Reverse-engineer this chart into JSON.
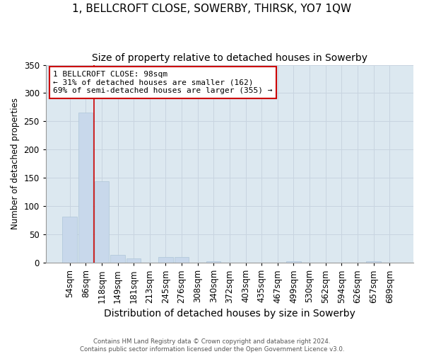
{
  "title": "1, BELLCROFT CLOSE, SOWERBY, THIRSK, YO7 1QW",
  "subtitle": "Size of property relative to detached houses in Sowerby",
  "xlabel": "Distribution of detached houses by size in Sowerby",
  "ylabel": "Number of detached properties",
  "bar_labels": [
    "54sqm",
    "86sqm",
    "118sqm",
    "149sqm",
    "181sqm",
    "213sqm",
    "245sqm",
    "276sqm",
    "308sqm",
    "340sqm",
    "372sqm",
    "403sqm",
    "435sqm",
    "467sqm",
    "499sqm",
    "530sqm",
    "562sqm",
    "594sqm",
    "626sqm",
    "657sqm",
    "689sqm"
  ],
  "bar_values": [
    82,
    265,
    144,
    14,
    8,
    0,
    10,
    10,
    0,
    3,
    0,
    0,
    0,
    0,
    3,
    0,
    0,
    0,
    0,
    2,
    0
  ],
  "bar_color": "#c8d8eb",
  "bar_edgecolor": "#aec6d8",
  "property_line_x": 1.5,
  "annotation_line1": "1 BELLCROFT CLOSE: 98sqm",
  "annotation_line2": "← 31% of detached houses are smaller (162)",
  "annotation_line3": "69% of semi-detached houses are larger (355) →",
  "annotation_box_color": "#ffffff",
  "annotation_box_edgecolor": "#cc0000",
  "property_line_color": "#cc0000",
  "ylim": [
    0,
    350
  ],
  "yticks": [
    0,
    50,
    100,
    150,
    200,
    250,
    300,
    350
  ],
  "grid_color": "#c8d4e0",
  "bg_color": "#dce8f0",
  "fig_bg_color": "#ffffff",
  "footer_text": "Contains HM Land Registry data © Crown copyright and database right 2024.\nContains public sector information licensed under the Open Government Licence v3.0.",
  "title_fontsize": 11,
  "subtitle_fontsize": 10,
  "xlabel_fontsize": 10,
  "ylabel_fontsize": 8.5,
  "tick_fontsize": 8.5
}
